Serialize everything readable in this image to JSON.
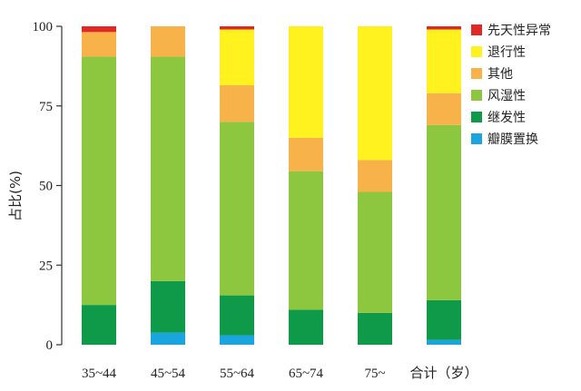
{
  "chart_data": {
    "type": "bar",
    "stacked": true,
    "categories": [
      "35~44",
      "45~54",
      "55~64",
      "65~74",
      "75~",
      "合计（岁）"
    ],
    "ylabel": "占比(%)",
    "xlabel": "",
    "ylim": [
      0,
      100
    ],
    "yticks": [
      0,
      25,
      50,
      75,
      100
    ],
    "legend_position": "top-right",
    "grid": false,
    "series": [
      {
        "name": "瓣膜置换",
        "color": "#1aa5de",
        "values": [
          0,
          3.8,
          3,
          0,
          0,
          1.5
        ]
      },
      {
        "name": "继发性",
        "color": "#0f9a4a",
        "values": [
          12.5,
          16.2,
          12.5,
          11,
          10,
          12.5
        ]
      },
      {
        "name": "风湿性",
        "color": "#8dc63f",
        "values": [
          78,
          70.5,
          54.5,
          43.5,
          38,
          55
        ]
      },
      {
        "name": "其他",
        "color": "#f7b24a",
        "values": [
          7.7,
          9.5,
          11.5,
          10.5,
          10,
          10
        ]
      },
      {
        "name": "退行性",
        "color": "#fff21e",
        "values": [
          0,
          0,
          17.5,
          35,
          42,
          20
        ]
      },
      {
        "name": "先天性异常",
        "color": "#e02826",
        "values": [
          1.8,
          0,
          1,
          0,
          0,
          1
        ]
      }
    ]
  }
}
